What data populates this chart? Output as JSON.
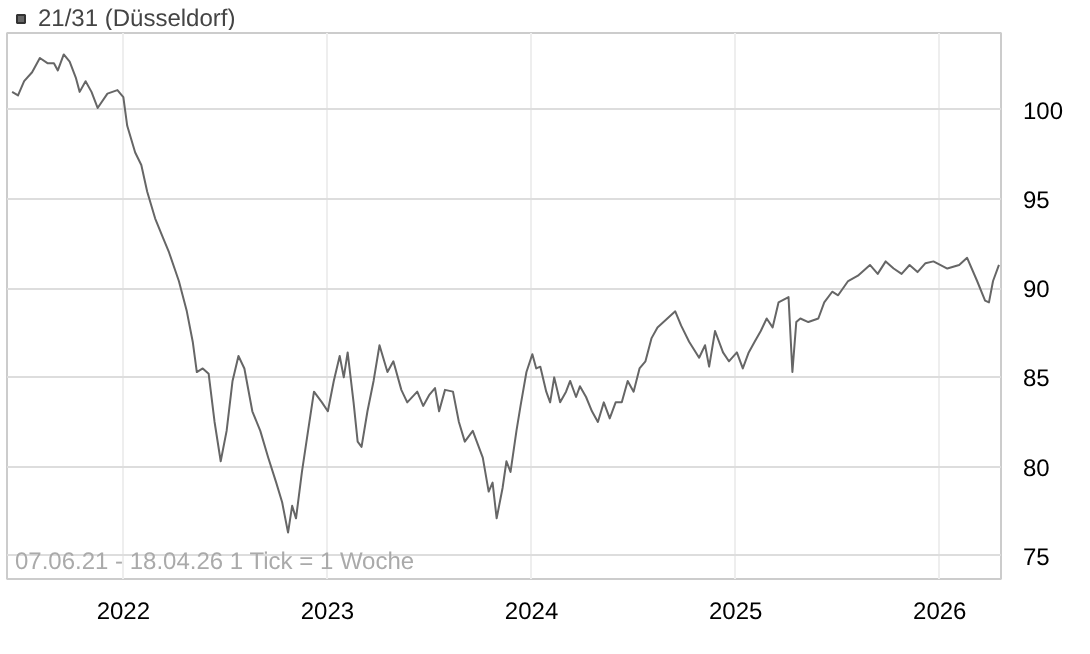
{
  "chart_data": {
    "type": "line",
    "x": [
      2021.455,
      2021.484,
      2021.514,
      2021.553,
      2021.591,
      2021.63,
      2021.66,
      2021.679,
      2021.708,
      2021.737,
      2021.767,
      2021.786,
      2021.815,
      2021.844,
      2021.874,
      2021.922,
      2021.971,
      2022.0,
      2022.019,
      2022.058,
      2022.088,
      2022.117,
      2022.156,
      2022.195,
      2022.224,
      2022.272,
      2022.311,
      2022.34,
      2022.36,
      2022.389,
      2022.418,
      2022.447,
      2022.477,
      2022.506,
      2022.535,
      2022.564,
      2022.593,
      2022.632,
      2022.671,
      2022.71,
      2022.749,
      2022.778,
      2022.807,
      2022.827,
      2022.846,
      2022.875,
      2022.905,
      2022.934,
      2022.973,
      2023.002,
      2023.031,
      2023.06,
      2023.08,
      2023.099,
      2023.128,
      2023.148,
      2023.167,
      2023.196,
      2023.226,
      2023.255,
      2023.294,
      2023.323,
      2023.362,
      2023.391,
      2023.44,
      2023.469,
      2023.498,
      2023.527,
      2023.547,
      2023.576,
      2023.615,
      2023.644,
      2023.673,
      2023.712,
      2023.761,
      2023.79,
      2023.809,
      2023.829,
      2023.858,
      2023.877,
      2023.897,
      2023.926,
      2023.946,
      2023.975,
      2024.004,
      2024.023,
      2024.043,
      2024.072,
      2024.091,
      2024.111,
      2024.14,
      2024.169,
      2024.189,
      2024.218,
      2024.237,
      2024.267,
      2024.296,
      2024.325,
      2024.354,
      2024.383,
      2024.412,
      2024.442,
      2024.471,
      2024.5,
      2024.529,
      2024.558,
      2024.588,
      2024.617,
      2024.704,
      2024.733,
      2024.772,
      2024.821,
      2024.85,
      2024.87,
      2024.899,
      2024.938,
      2024.967,
      2025.006,
      2025.035,
      2025.064,
      2025.093,
      2025.123,
      2025.152,
      2025.181,
      2025.21,
      2025.259,
      2025.278,
      2025.297,
      2025.317,
      2025.356,
      2025.405,
      2025.434,
      2025.473,
      2025.502,
      2025.551,
      2025.599,
      2025.658,
      2025.696,
      2025.735,
      2025.774,
      2025.813,
      2025.852,
      2025.891,
      2025.93,
      2025.969,
      2026.037,
      2026.095,
      2026.134,
      2026.183,
      2026.222,
      2026.241,
      2026.261,
      2026.29
    ],
    "series": [
      {
        "name": "21/31 (Düsseldorf)",
        "color": "#666666",
        "values": [
          101.0,
          100.8,
          101.6,
          102.1,
          102.9,
          102.6,
          102.6,
          102.2,
          103.1,
          102.7,
          101.8,
          101.0,
          101.6,
          101.0,
          100.1,
          100.9,
          101.1,
          100.7,
          99.1,
          97.6,
          96.9,
          95.4,
          93.9,
          92.8,
          92.0,
          90.4,
          88.7,
          87.0,
          85.3,
          85.5,
          85.2,
          82.5,
          80.3,
          82.0,
          84.8,
          86.2,
          85.5,
          83.1,
          82.0,
          80.5,
          79.1,
          78.0,
          76.3,
          77.8,
          77.1,
          79.7,
          82.0,
          84.2,
          83.6,
          83.1,
          84.8,
          86.2,
          85.0,
          86.4,
          83.6,
          81.4,
          81.1,
          83.1,
          84.8,
          86.8,
          85.3,
          85.9,
          84.3,
          83.6,
          84.2,
          83.4,
          84.0,
          84.4,
          83.1,
          84.3,
          84.2,
          82.5,
          81.4,
          82.0,
          80.5,
          78.6,
          79.1,
          77.1,
          78.8,
          80.3,
          79.7,
          82.0,
          83.4,
          85.3,
          86.3,
          85.5,
          85.6,
          84.2,
          83.6,
          85.0,
          83.6,
          84.2,
          84.8,
          83.9,
          84.5,
          83.9,
          83.1,
          82.5,
          83.6,
          82.7,
          83.6,
          83.6,
          84.8,
          84.2,
          85.5,
          85.9,
          87.2,
          87.8,
          88.7,
          87.9,
          87.0,
          86.1,
          86.8,
          85.6,
          87.6,
          86.4,
          85.9,
          86.4,
          85.5,
          86.4,
          87.0,
          87.6,
          88.3,
          87.8,
          89.2,
          89.5,
          85.3,
          88.1,
          88.3,
          88.1,
          88.3,
          89.2,
          89.8,
          89.6,
          90.4,
          90.7,
          91.3,
          90.8,
          91.5,
          91.1,
          90.8,
          91.3,
          90.9,
          91.4,
          91.5,
          91.1,
          91.3,
          91.7,
          90.4,
          89.3,
          89.2,
          90.4,
          91.3
        ]
      }
    ],
    "xlim": [
      2021.43,
      2026.3
    ],
    "ylim": [
      73.7,
      104.3
    ],
    "xticks": [
      {
        "value": 2022,
        "label": "2022"
      },
      {
        "value": 2023,
        "label": "2023"
      },
      {
        "value": 2024,
        "label": "2024"
      },
      {
        "value": 2025,
        "label": "2025"
      },
      {
        "value": 2026,
        "label": "2026"
      }
    ],
    "yticks": [
      75,
      80,
      85,
      90,
      95,
      100
    ],
    "grid": true,
    "legend": "top left",
    "annotations": [
      "07.06.21 - 18.04.26   1 Tick = 1 Woche"
    ]
  }
}
